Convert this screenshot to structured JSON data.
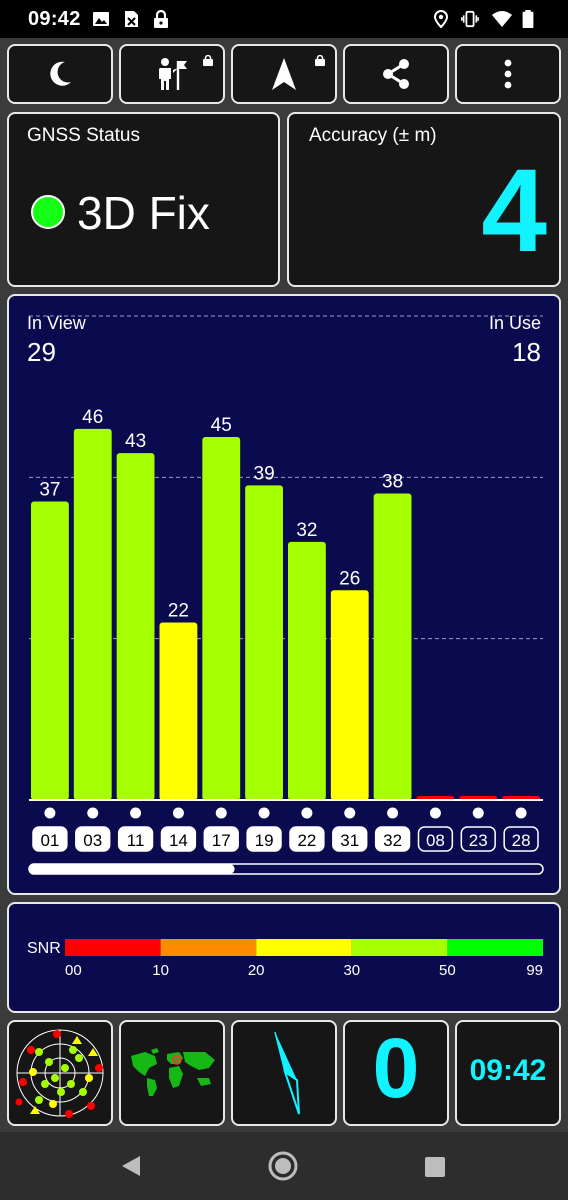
{
  "status_bar": {
    "time": "09:42",
    "left_icons": [
      "image-icon",
      "sim-off-icon",
      "lock-icon"
    ],
    "right_icons": [
      "location-pin-icon",
      "vibrate-icon",
      "wifi-icon",
      "battery-icon"
    ]
  },
  "toolbar": {
    "buttons": [
      {
        "icon": "moon-icon",
        "locked": false
      },
      {
        "icon": "hiker-flag-icon",
        "locked": true
      },
      {
        "icon": "navigation-arrow-icon",
        "locked": true
      },
      {
        "icon": "share-icon",
        "locked": false
      },
      {
        "icon": "more-vert-icon",
        "locked": false
      }
    ]
  },
  "gnss_status": {
    "title": "GNSS Status",
    "fix_text": "3D Fix",
    "fix_color": "#16ff16"
  },
  "accuracy": {
    "title": "Accuracy (± m)",
    "value": "4",
    "color": "#11f3ff"
  },
  "satellites": {
    "in_view_label": "In View",
    "in_view_count": "29",
    "in_use_label": "In Use",
    "in_use_count": "18",
    "scroll_fraction": 0.4
  },
  "chart_data": {
    "type": "bar",
    "categories": [
      "01",
      "03",
      "11",
      "14",
      "17",
      "19",
      "22",
      "31",
      "32",
      "08",
      "23",
      "28"
    ],
    "values": [
      37,
      46,
      43,
      22,
      45,
      39,
      32,
      26,
      38,
      0,
      0,
      0
    ],
    "labels": [
      "37",
      "46",
      "43",
      "22",
      "45",
      "39",
      "32",
      "26",
      "38",
      "",
      "",
      ""
    ],
    "in_use": [
      true,
      true,
      true,
      true,
      true,
      true,
      true,
      true,
      true,
      false,
      false,
      false
    ],
    "ylim": [
      0,
      60
    ],
    "gridlines": [
      20,
      40,
      60
    ],
    "grid": true,
    "colors": {
      "green": "#a6ff00",
      "yellow": "#ffff00",
      "red": "#ff0000",
      "orange": "#ff8c00",
      "bright_green": "#00ff00"
    }
  },
  "snr_legend": {
    "label": "SNR",
    "ticks": [
      "00",
      "10",
      "20",
      "30",
      "50",
      "99"
    ],
    "tick_values": [
      0,
      10,
      20,
      30,
      50,
      99
    ],
    "segments": [
      {
        "from": 0,
        "to": 10,
        "color": "#ff0000"
      },
      {
        "from": 10,
        "to": 20,
        "color": "#ff8c00"
      },
      {
        "from": 20,
        "to": 30,
        "color": "#ffff00"
      },
      {
        "from": 30,
        "to": 50,
        "color": "#a6ff00"
      },
      {
        "from": 50,
        "to": 99,
        "color": "#00ff00"
      }
    ]
  },
  "bottom_tiles": {
    "sky_plot_icon": "sky-plot-icon",
    "world_map_icon": "world-map-icon",
    "compass_icon": "compass-needle-icon",
    "speed_value": "0",
    "clock_time": "09:42"
  },
  "nav_bar": {
    "icons": [
      "back-icon",
      "home-icon",
      "recents-icon"
    ]
  }
}
